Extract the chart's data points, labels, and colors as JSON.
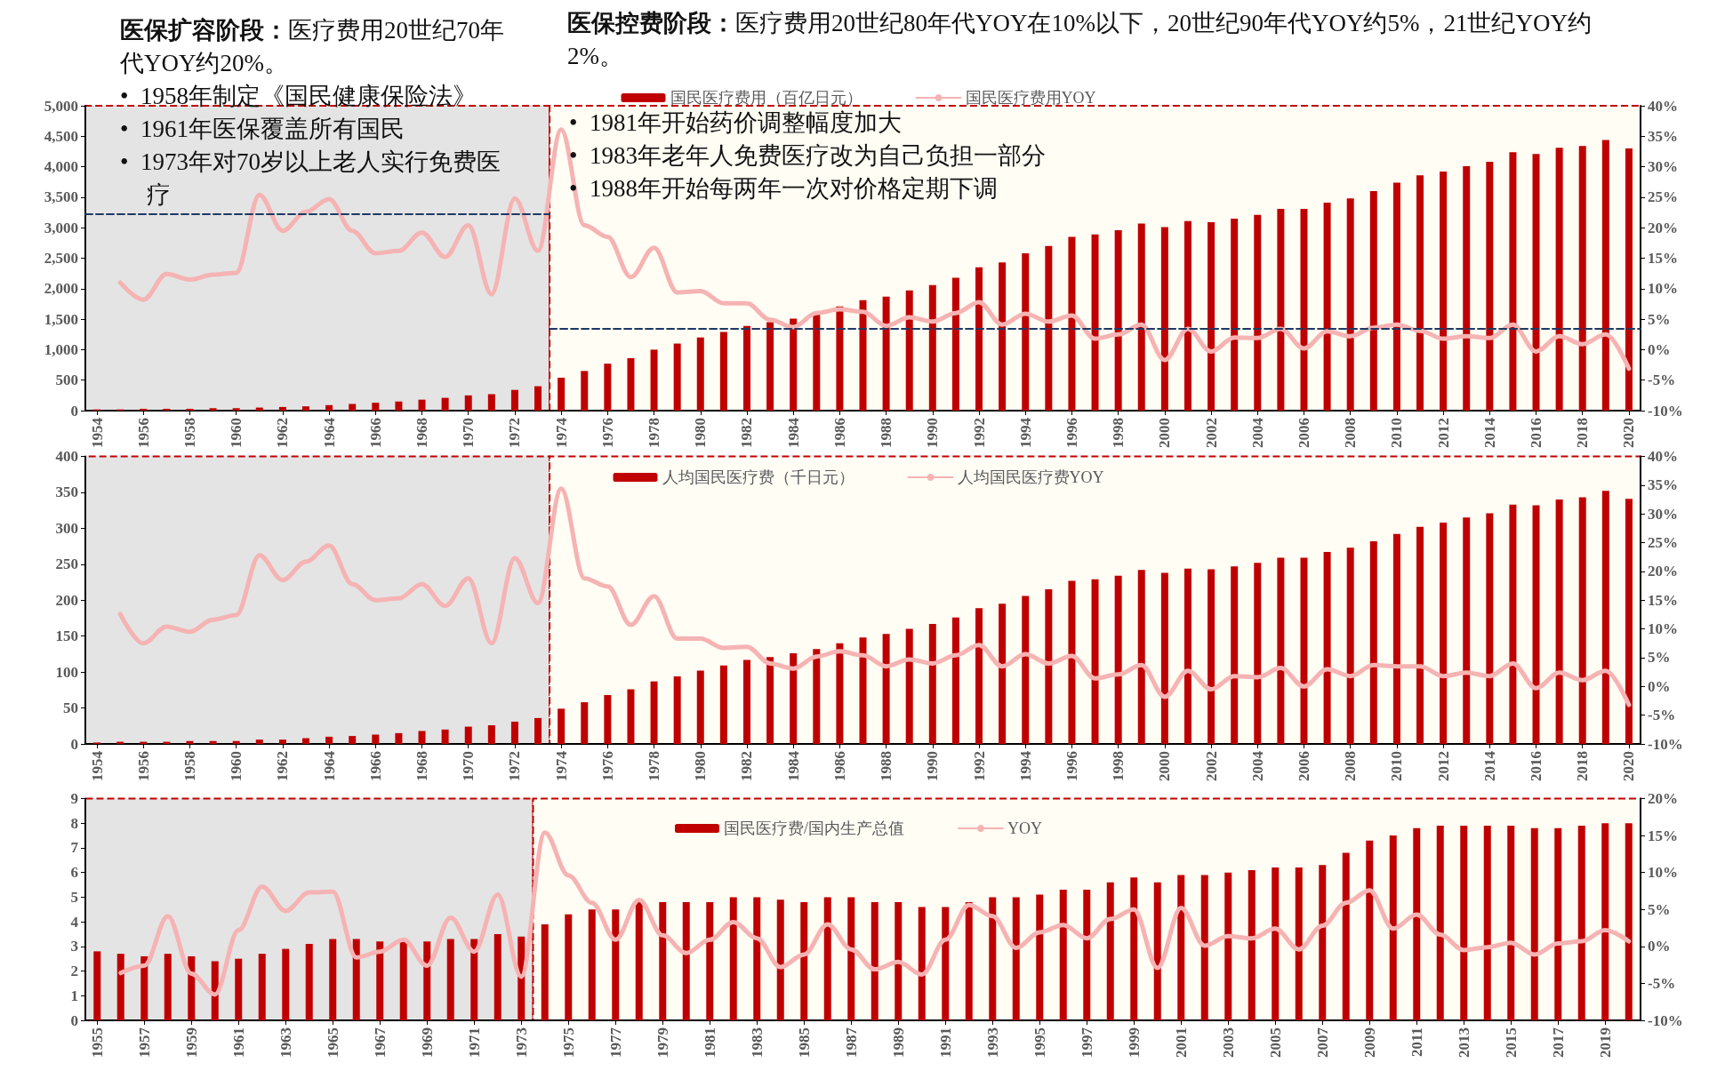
{
  "chart_data": [
    {
      "type": "bar",
      "legend": "top",
      "marker": "none",
      "annotations": [
        "医保扩容阶段：医疗费用20世纪70年代YOY约20%。",
        "•  1958年制定《国民健康保险法》",
        "•  1961年医保覆盖所有国民",
        "•  1973年对70岁以上老人实行免费医疗",
        "医保控费阶段：医疗费用20世纪80年代YOY在10%以下，20世纪90年代YOY约5%，21世纪YOY约2%。",
        "•  1981年开始药价调整幅度加大",
        "•  1983年老年人免费医疗改为自己负担一部分",
        "•  1988年开始每两年一次对价格定期下调"
      ],
      "bands": [
        {
          "axis": "x",
          "from": 1953.5,
          "to": 1973.5,
          "color": "#e4e4e4"
        },
        {
          "axis": "x",
          "from": 1973.5,
          "to": 2020.5,
          "color": "#fffdf4"
        }
      ],
      "x": [
        1954,
        1955,
        1956,
        1957,
        1958,
        1959,
        1960,
        1961,
        1962,
        1963,
        1964,
        1965,
        1966,
        1967,
        1968,
        1969,
        1970,
        1971,
        1972,
        1973,
        1974,
        1975,
        1976,
        1977,
        1978,
        1979,
        1980,
        1981,
        1982,
        1983,
        1984,
        1985,
        1986,
        1987,
        1988,
        1989,
        1990,
        1991,
        1992,
        1993,
        1994,
        1995,
        1996,
        1997,
        1998,
        1999,
        2000,
        2001,
        2002,
        2003,
        2004,
        2005,
        2006,
        2007,
        2008,
        2009,
        2010,
        2011,
        2012,
        2013,
        2014,
        2015,
        2016,
        2017,
        2018,
        2019,
        2020
      ],
      "xlim": [
        1953.5,
        2020.5
      ],
      "xticks": [
        1954,
        1956,
        1958,
        1960,
        1962,
        1964,
        1966,
        1968,
        1970,
        1972,
        1974,
        1976,
        1978,
        1980,
        1982,
        1984,
        1986,
        1988,
        1990,
        1992,
        1994,
        1996,
        1998,
        2000,
        2002,
        2004,
        2006,
        2008,
        2010,
        2012,
        2014,
        2016,
        2018,
        2020
      ],
      "ylim": [
        0,
        5000
      ],
      "yticks": [
        0,
        500,
        {
          "value": 1000,
          "label": "1,000"
        },
        {
          "value": 1500,
          "label": "1,500"
        },
        {
          "value": 2000,
          "label": "2,000"
        },
        {
          "value": 2500,
          "label": "2,500"
        },
        {
          "value": 3000,
          "label": "3,000"
        },
        {
          "value": 3500,
          "label": "3,500"
        },
        {
          "value": 4000,
          "label": "4,000"
        },
        {
          "value": 4500,
          "label": "4,500"
        },
        {
          "value": 5000,
          "label": "5,000"
        }
      ],
      "y2lim": [
        -10,
        40
      ],
      "y2ticks": [
        {
          "value": -10,
          "label": "-10%"
        },
        {
          "value": -5,
          "label": "-5%"
        },
        {
          "value": 0,
          "label": "0%"
        },
        {
          "value": 5,
          "label": "5%"
        },
        {
          "value": 10,
          "label": "10%"
        },
        {
          "value": 15,
          "label": "15%"
        },
        {
          "value": 20,
          "label": "20%"
        },
        {
          "value": 25,
          "label": "25%"
        },
        {
          "value": 30,
          "label": "30%"
        },
        {
          "value": 35,
          "label": "35%"
        },
        {
          "value": 40,
          "label": "40%"
        }
      ],
      "series": [
        {
          "name": "国民医疗费用（百亿日元）",
          "color": "#c00000",
          "values": [
            20,
            20,
            30,
            30,
            30,
            40,
            40,
            50,
            60,
            70,
            90,
            110,
            130,
            150,
            180,
            210,
            250,
            270,
            340,
            400,
            540,
            650,
            770,
            860,
            1000,
            1100,
            1200,
            1290,
            1390,
            1450,
            1510,
            1600,
            1710,
            1810,
            1870,
            1970,
            2060,
            2180,
            2350,
            2430,
            2580,
            2700,
            2850,
            2890,
            2960,
            3070,
            3010,
            3110,
            3090,
            3150,
            3210,
            3310,
            3310,
            3410,
            3480,
            3600,
            3740,
            3860,
            3920,
            4010,
            4080,
            4240,
            4210,
            4310,
            4340,
            4440,
            4300
          ]
        },
        {
          "name": "国民医疗费用YOY",
          "type": "line",
          "axis": "y2",
          "color": "#f6b3b3",
          "line_style": "solid",
          "values": [
            null,
            11.0,
            8.2,
            12.4,
            11.5,
            12.3,
            12.6,
            25.4,
            19.5,
            22.6,
            24.7,
            19.5,
            15.8,
            16.2,
            19.2,
            15.2,
            20.4,
            9.1,
            24.8,
            16.2,
            36.1,
            20.4,
            18.5,
            11.9,
            16.7,
            9.4,
            9.6,
            7.6,
            7.6,
            4.9,
            3.7,
            6.0,
            6.6,
            6.2,
            3.9,
            5.3,
            4.6,
            6.0,
            7.8,
            4.1,
            5.9,
            4.6,
            5.6,
            1.8,
            2.5,
            4.1,
            -1.7,
            3.4,
            -0.3,
            2.0,
            1.9,
            3.4,
            0.2,
            3.0,
            2.2,
            3.6,
            4.1,
            3.1,
            1.8,
            2.2,
            1.9,
            4.1,
            -0.3,
            2.2,
            0.9,
            2.5,
            -3.1
          ]
        },
        {
          "type": "line",
          "axis": "y2",
          "color": "#1f3864",
          "line_style": "dashed",
          "x": [
            1953.5,
            1973.5
          ],
          "values": [
            22.2,
            22.2
          ]
        },
        {
          "type": "line",
          "axis": "y2",
          "color": "#1f3864",
          "line_style": "dashed",
          "x": [
            1973.5,
            2020.5
          ],
          "values": [
            3.4,
            3.4
          ]
        }
      ]
    },
    {
      "type": "bar",
      "legend": "top",
      "marker": "none",
      "bands": [
        {
          "axis": "x",
          "from": 1953.5,
          "to": 1973.5,
          "color": "#e4e4e4"
        },
        {
          "axis": "x",
          "from": 1973.5,
          "to": 2020.5,
          "color": "#fffdf4"
        }
      ],
      "x": [
        1954,
        1955,
        1956,
        1957,
        1958,
        1959,
        1960,
        1961,
        1962,
        1963,
        1964,
        1965,
        1966,
        1967,
        1968,
        1969,
        1970,
        1971,
        1972,
        1973,
        1974,
        1975,
        1976,
        1977,
        1978,
        1979,
        1980,
        1981,
        1982,
        1983,
        1984,
        1985,
        1986,
        1987,
        1988,
        1989,
        1990,
        1991,
        1992,
        1993,
        1994,
        1995,
        1996,
        1997,
        1998,
        1999,
        2000,
        2001,
        2002,
        2003,
        2004,
        2005,
        2006,
        2007,
        2008,
        2009,
        2010,
        2011,
        2012,
        2013,
        2014,
        2015,
        2016,
        2017,
        2018,
        2019,
        2020
      ],
      "xlim": [
        1953.5,
        2020.5
      ],
      "xticks": [
        1954,
        1956,
        1958,
        1960,
        1962,
        1964,
        1966,
        1968,
        1970,
        1972,
        1974,
        1976,
        1978,
        1980,
        1982,
        1984,
        1986,
        1988,
        1990,
        1992,
        1994,
        1996,
        1998,
        2000,
        2002,
        2004,
        2006,
        2008,
        2010,
        2012,
        2014,
        2016,
        2018,
        2020
      ],
      "ylim": [
        0,
        400
      ],
      "yticks": [
        0,
        50,
        100,
        150,
        200,
        250,
        300,
        350,
        400
      ],
      "y2lim": [
        -10,
        40
      ],
      "y2ticks": [
        {
          "value": -10,
          "label": "-10%"
        },
        {
          "value": -5,
          "label": "-5%"
        },
        {
          "value": 0,
          "label": "0%"
        },
        {
          "value": 5,
          "label": "5%"
        },
        {
          "value": 10,
          "label": "10%"
        },
        {
          "value": 15,
          "label": "15%"
        },
        {
          "value": 20,
          "label": "20%"
        },
        {
          "value": 25,
          "label": "25%"
        },
        {
          "value": 30,
          "label": "30%"
        },
        {
          "value": 35,
          "label": "35%"
        },
        {
          "value": 40,
          "label": "40%"
        }
      ],
      "series": [
        {
          "name": "人均国民医疗费（千日元）",
          "color": "#c00000",
          "values": [
            2,
            3,
            3,
            3,
            4,
            4,
            4,
            6,
            6,
            8,
            10,
            11,
            13,
            15,
            18,
            20,
            24,
            26,
            31,
            36,
            49,
            58,
            68,
            76,
            87,
            94,
            102,
            109,
            117,
            121,
            126,
            132,
            140,
            148,
            153,
            160,
            167,
            176,
            189,
            195,
            206,
            215,
            227,
            229,
            234,
            242,
            238,
            244,
            243,
            247,
            252,
            259,
            259,
            267,
            273,
            282,
            292,
            302,
            308,
            315,
            321,
            333,
            332,
            340,
            343,
            352,
            341
          ]
        },
        {
          "name": "人均国民医疗费YOY",
          "type": "line",
          "axis": "y2",
          "color": "#f6b3b3",
          "line_style": "solid",
          "values": [
            null,
            12.6,
            7.5,
            10.4,
            9.5,
            11.6,
            12.4,
            22.8,
            18.5,
            21.7,
            24.5,
            17.8,
            15.0,
            15.3,
            17.8,
            14.0,
            18.8,
            7.5,
            22.3,
            14.5,
            34.4,
            18.8,
            17.4,
            10.7,
            15.7,
            8.3,
            8.3,
            6.7,
            6.9,
            4.0,
            3.1,
            5.2,
            6.1,
            5.4,
            3.5,
            4.7,
            4.0,
            5.4,
            7.2,
            3.5,
            5.6,
            4.0,
            5.3,
            1.4,
            2.1,
            3.7,
            -1.8,
            2.7,
            -0.5,
            1.8,
            1.6,
            3.2,
            0.0,
            3.0,
            1.8,
            3.7,
            3.5,
            3.5,
            1.8,
            2.4,
            1.8,
            4.0,
            -0.3,
            2.4,
            1.1,
            2.7,
            -3.2
          ]
        }
      ]
    },
    {
      "type": "bar",
      "legend": "top",
      "marker": "none",
      "bands": [
        {
          "axis": "x",
          "from": 1954.5,
          "to": 1973.5,
          "color": "#e4e4e4"
        },
        {
          "axis": "x",
          "from": 1973.5,
          "to": 2020.5,
          "color": "#fffdf4"
        }
      ],
      "x": [
        1955,
        1956,
        1957,
        1958,
        1959,
        1960,
        1961,
        1962,
        1963,
        1964,
        1965,
        1966,
        1967,
        1968,
        1969,
        1970,
        1971,
        1972,
        1973,
        1974,
        1975,
        1976,
        1977,
        1978,
        1979,
        1980,
        1981,
        1982,
        1983,
        1984,
        1985,
        1986,
        1987,
        1988,
        1989,
        1990,
        1991,
        1992,
        1993,
        1994,
        1995,
        1996,
        1997,
        1998,
        1999,
        2000,
        2001,
        2002,
        2003,
        2004,
        2005,
        2006,
        2007,
        2008,
        2009,
        2010,
        2011,
        2012,
        2013,
        2014,
        2015,
        2016,
        2017,
        2018,
        2019,
        2020
      ],
      "xlim": [
        1954.5,
        2020.5
      ],
      "xticks": [
        1955,
        1957,
        1959,
        1961,
        1963,
        1965,
        1967,
        1969,
        1971,
        1973,
        1975,
        1977,
        1979,
        1981,
        1983,
        1985,
        1987,
        1989,
        1991,
        1993,
        1995,
        1997,
        1999,
        2001,
        2003,
        2005,
        2007,
        2009,
        2011,
        2013,
        2015,
        2017,
        2019
      ],
      "ylim": [
        0,
        9
      ],
      "yticks": [
        0,
        1,
        2,
        3,
        4,
        5,
        6,
        7,
        8,
        9
      ],
      "y2lim": [
        -10,
        20
      ],
      "y2ticks": [
        {
          "value": -10,
          "label": "-10%"
        },
        {
          "value": -5,
          "label": "-5%"
        },
        {
          "value": 0,
          "label": "0%"
        },
        {
          "value": 5,
          "label": "5%"
        },
        {
          "value": 10,
          "label": "10%"
        },
        {
          "value": 15,
          "label": "15%"
        },
        {
          "value": 20,
          "label": "20%"
        }
      ],
      "series": [
        {
          "name": "国民医疗费/国内生产总值",
          "color": "#c00000",
          "values": [
            2.8,
            2.7,
            2.6,
            2.7,
            2.6,
            2.4,
            2.5,
            2.7,
            2.9,
            3.1,
            3.3,
            3.3,
            3.2,
            3.2,
            3.2,
            3.3,
            3.3,
            3.5,
            3.4,
            3.9,
            4.3,
            4.5,
            4.5,
            4.8,
            4.8,
            4.8,
            4.8,
            5.0,
            5.0,
            4.9,
            4.8,
            5.0,
            5.0,
            4.8,
            4.8,
            4.6,
            4.6,
            4.8,
            5.0,
            5.0,
            5.1,
            5.3,
            5.3,
            5.6,
            5.8,
            5.6,
            5.9,
            5.9,
            6.0,
            6.1,
            6.2,
            6.2,
            6.3,
            6.8,
            7.3,
            7.5,
            7.8,
            7.9,
            7.9,
            7.9,
            7.9,
            7.8,
            7.8,
            7.9,
            8.0,
            8.0
          ]
        },
        {
          "name": "YOY",
          "type": "line",
          "axis": "y2",
          "color": "#f6b3b3",
          "line_style": "solid",
          "values": [
            null,
            -3.6,
            -2.6,
            4.1,
            -3.7,
            -6.5,
            2.2,
            8.1,
            4.8,
            7.3,
            7.4,
            -1.5,
            -0.7,
            0.9,
            -2.6,
            3.9,
            -0.7,
            7.0,
            -4.1,
            15.4,
            9.6,
            5.9,
            0.9,
            6.3,
            1.5,
            -0.9,
            0.9,
            3.3,
            1.1,
            -2.8,
            -1.1,
            3.0,
            -0.4,
            -3.1,
            -2.1,
            -3.8,
            0.9,
            5.6,
            4.1,
            -0.2,
            1.9,
            2.9,
            1.1,
            3.7,
            5.0,
            -2.9,
            5.2,
            0.1,
            1.4,
            1.1,
            2.4,
            -0.4,
            2.8,
            5.9,
            7.6,
            2.4,
            4.3,
            1.6,
            -0.5,
            -0.1,
            0.5,
            -1.1,
            0.4,
            0.7,
            2.2,
            0.7
          ]
        }
      ]
    }
  ]
}
